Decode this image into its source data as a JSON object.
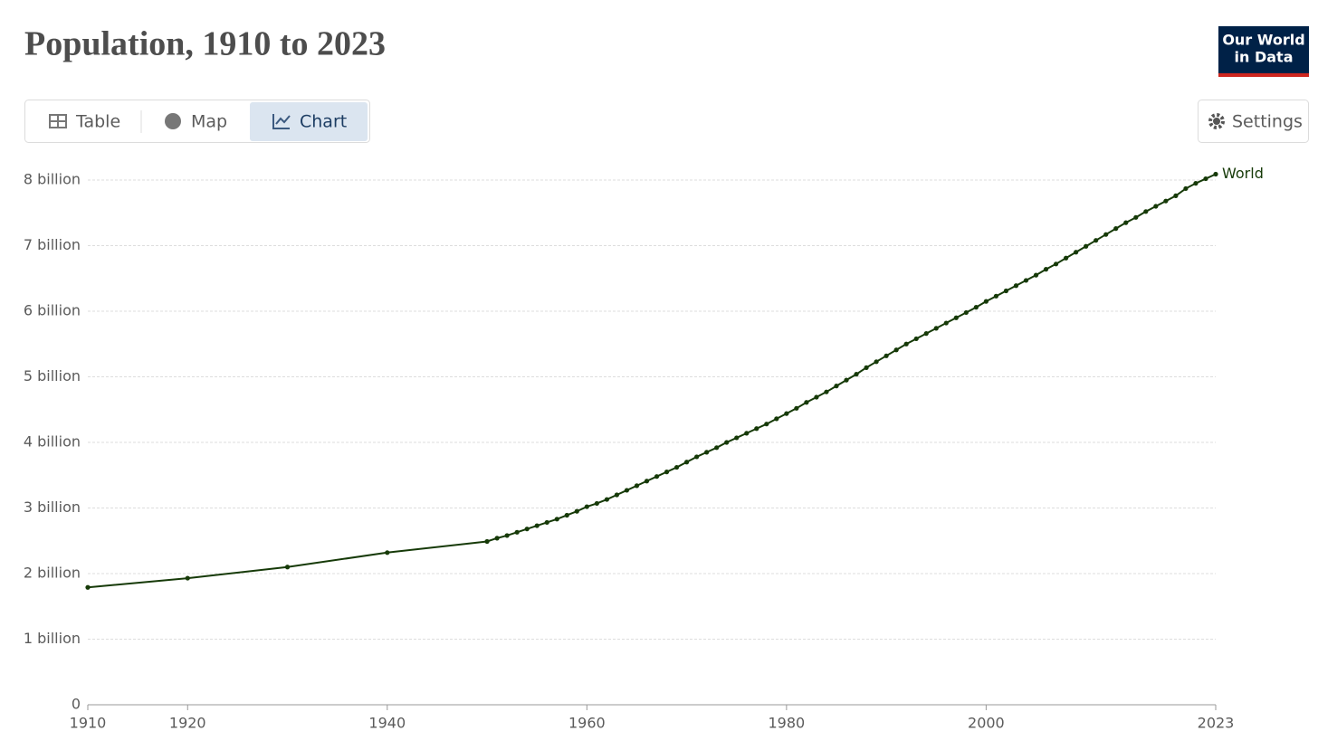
{
  "chart_data": {
    "type": "line",
    "title": "Population, 1910 to 2023",
    "x": [
      1910,
      1920,
      1930,
      1940,
      1950,
      1951,
      1952,
      1953,
      1954,
      1955,
      1956,
      1957,
      1958,
      1959,
      1960,
      1961,
      1962,
      1963,
      1964,
      1965,
      1966,
      1967,
      1968,
      1969,
      1970,
      1971,
      1972,
      1973,
      1974,
      1975,
      1976,
      1977,
      1978,
      1979,
      1980,
      1981,
      1982,
      1983,
      1984,
      1985,
      1986,
      1987,
      1988,
      1989,
      1990,
      1991,
      1992,
      1993,
      1994,
      1995,
      1996,
      1997,
      1998,
      1999,
      2000,
      2001,
      2002,
      2003,
      2004,
      2005,
      2006,
      2007,
      2008,
      2009,
      2010,
      2011,
      2012,
      2013,
      2014,
      2015,
      2016,
      2017,
      2018,
      2019,
      2020,
      2021,
      2022,
      2023
    ],
    "series": [
      {
        "name": "World",
        "color": "#163a08",
        "values": [
          1.79,
          1.93,
          2.1,
          2.32,
          2.49,
          2.54,
          2.58,
          2.63,
          2.68,
          2.73,
          2.78,
          2.83,
          2.89,
          2.95,
          3.02,
          3.07,
          3.13,
          3.2,
          3.27,
          3.34,
          3.41,
          3.48,
          3.55,
          3.62,
          3.7,
          3.78,
          3.85,
          3.92,
          4.0,
          4.07,
          4.14,
          4.21,
          4.28,
          4.36,
          4.44,
          4.52,
          4.61,
          4.69,
          4.77,
          4.86,
          4.95,
          5.04,
          5.14,
          5.23,
          5.32,
          5.41,
          5.5,
          5.58,
          5.66,
          5.74,
          5.82,
          5.9,
          5.98,
          6.06,
          6.15,
          6.23,
          6.31,
          6.39,
          6.47,
          6.55,
          6.64,
          6.72,
          6.81,
          6.9,
          6.99,
          7.08,
          7.17,
          7.26,
          7.35,
          7.43,
          7.52,
          7.6,
          7.68,
          7.76,
          7.87,
          7.95,
          8.02,
          8.09
        ]
      }
    ],
    "xlim": [
      1910,
      2023
    ],
    "xticks": [
      1910,
      1920,
      1940,
      1960,
      1980,
      2000,
      2023
    ],
    "ylim": [
      0,
      8
    ],
    "yticks": [
      0,
      {
        "value": 1,
        "label": "1 billion"
      },
      {
        "value": 2,
        "label": "2 billion"
      },
      {
        "value": 3,
        "label": "3 billion"
      },
      {
        "value": 4,
        "label": "4 billion"
      },
      {
        "value": 5,
        "label": "5 billion"
      },
      {
        "value": 6,
        "label": "6 billion"
      },
      {
        "value": 7,
        "label": "7 billion"
      },
      {
        "value": 8,
        "label": "8 billion"
      }
    ],
    "grid": true
  },
  "ui": {
    "tabs": [
      "Table",
      "Map",
      "Chart"
    ],
    "settings": "Settings",
    "logo": [
      "Our World",
      "in Data"
    ]
  }
}
